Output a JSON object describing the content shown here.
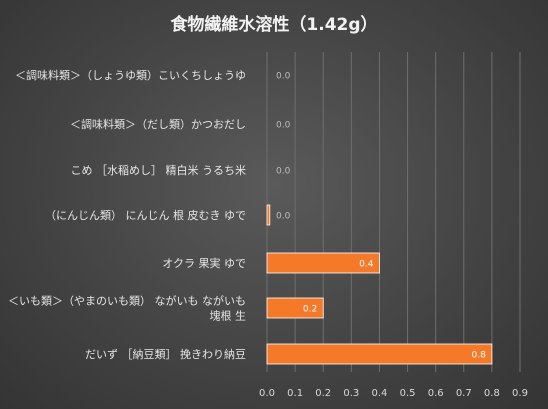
{
  "chart_data": {
    "type": "bar",
    "orientation": "horizontal",
    "title": "食物繊維水溶性（1.42g）",
    "categories": [
      "＜調味料類＞（しょうゆ類）こいくちしょうゆ",
      "＜調味料類＞（だし類）かつおだし",
      "こめ ［水稲めし］ 精白米 うるち米",
      "（にんじん類） にんじん 根 皮むき ゆで",
      "オクラ 果実 ゆで",
      "＜いも類＞（やまのいも類） ながいも ながいも 塊根 生",
      "だいず ［納豆類］ 挽きわり納豆"
    ],
    "category_lines": [
      [
        "＜調味料類＞（しょうゆ類）こいくちしょうゆ"
      ],
      [
        "＜調味料類＞（だし類）かつおだし"
      ],
      [
        "こめ ［水稲めし］ 精白米 うるち米"
      ],
      [
        "（にんじん類） にんじん 根 皮むき ゆで"
      ],
      [
        "オクラ 果実 ゆで"
      ],
      [
        "＜いも類＞（やまのいも類） ながいも ながいも",
        "塊根 生"
      ],
      [
        "だいず ［納豆類］ 挽きわり納豆"
      ]
    ],
    "values": [
      0.0,
      0.0,
      0.0,
      0.01,
      0.4,
      0.2,
      0.8
    ],
    "data_labels": [
      "0.0",
      "0.0",
      "0.0",
      "0.0",
      "0.4",
      "0.2",
      "0.8"
    ],
    "xlim": [
      0,
      0.9
    ],
    "xticks": [
      0.0,
      0.1,
      0.2,
      0.3,
      0.4,
      0.5,
      0.6,
      0.7,
      0.8,
      0.9
    ],
    "xtick_labels": [
      "0.0",
      "0.1",
      "0.2",
      "0.3",
      "0.4",
      "0.5",
      "0.6",
      "0.7",
      "0.8",
      "0.9"
    ],
    "grid": true,
    "legend": "none",
    "colors": {
      "bar": "#f47a2a",
      "bar_outline": "#ffffff",
      "background": "#444444",
      "gridline": "#6e6e6e",
      "text": "#e6e6e6"
    }
  }
}
